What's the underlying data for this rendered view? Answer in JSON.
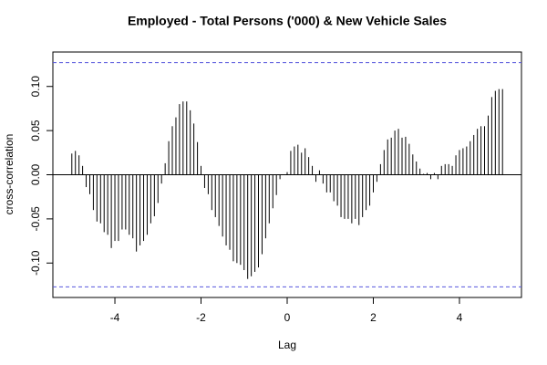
{
  "chart_data": {
    "type": "ccf",
    "title": "Employed - Total Persons ('000) & New Vehicle Sales",
    "x_label": "Lag",
    "y_label": "cross-correlation",
    "x": [
      -5,
      -4.917,
      -4.833,
      -4.75,
      -4.667,
      -4.583,
      -4.5,
      -4.417,
      -4.333,
      -4.25,
      -4.167,
      -4.083,
      -4,
      -3.917,
      -3.833,
      -3.75,
      -3.667,
      -3.583,
      -3.5,
      -3.417,
      -3.333,
      -3.25,
      -3.167,
      -3.083,
      -3,
      -2.917,
      -2.833,
      -2.75,
      -2.667,
      -2.583,
      -2.5,
      -2.417,
      -2.333,
      -2.25,
      -2.167,
      -2.083,
      -2,
      -1.917,
      -1.833,
      -1.75,
      -1.667,
      -1.583,
      -1.5,
      -1.417,
      -1.333,
      -1.25,
      -1.167,
      -1.083,
      -1,
      -0.917,
      -0.833,
      -0.75,
      -0.667,
      -0.583,
      -0.5,
      -0.417,
      -0.333,
      -0.25,
      -0.167,
      -0.083,
      0,
      0.083,
      0.167,
      0.25,
      0.333,
      0.417,
      0.5,
      0.583,
      0.667,
      0.75,
      0.833,
      0.917,
      1,
      1.083,
      1.167,
      1.25,
      1.333,
      1.417,
      1.5,
      1.583,
      1.667,
      1.75,
      1.833,
      1.917,
      2,
      2.083,
      2.167,
      2.25,
      2.333,
      2.417,
      2.5,
      2.583,
      2.667,
      2.75,
      2.833,
      2.917,
      3,
      3.083,
      3.167,
      3.25,
      3.333,
      3.417,
      3.5,
      3.583,
      3.667,
      3.75,
      3.833,
      3.917,
      4,
      4.083,
      4.167,
      4.25,
      4.333,
      4.417,
      4.5,
      4.583,
      4.667,
      4.75,
      4.833,
      4.917,
      5
    ],
    "values": [
      0.024,
      0.027,
      0.022,
      0.01,
      -0.014,
      -0.022,
      -0.04,
      -0.053,
      -0.055,
      -0.065,
      -0.068,
      -0.083,
      -0.075,
      -0.075,
      -0.062,
      -0.062,
      -0.068,
      -0.072,
      -0.087,
      -0.08,
      -0.075,
      -0.068,
      -0.055,
      -0.047,
      -0.032,
      -0.01,
      0.013,
      0.038,
      0.055,
      0.065,
      0.08,
      0.083,
      0.083,
      0.073,
      0.058,
      0.037,
      0.01,
      -0.015,
      -0.022,
      -0.04,
      -0.048,
      -0.058,
      -0.07,
      -0.08,
      -0.085,
      -0.098,
      -0.1,
      -0.102,
      -0.108,
      -0.118,
      -0.115,
      -0.11,
      -0.105,
      -0.09,
      -0.072,
      -0.055,
      -0.038,
      -0.023,
      -0.005,
      0.0,
      0.003,
      0.027,
      0.032,
      0.034,
      0.025,
      0.03,
      0.02,
      0.01,
      -0.008,
      0.005,
      -0.01,
      -0.02,
      -0.02,
      -0.03,
      -0.035,
      -0.048,
      -0.05,
      -0.05,
      -0.055,
      -0.05,
      -0.057,
      -0.048,
      -0.04,
      -0.035,
      -0.02,
      -0.008,
      0.012,
      0.028,
      0.04,
      0.042,
      0.05,
      0.052,
      0.042,
      0.043,
      0.035,
      0.023,
      0.015,
      0.007,
      0.001,
      0.002,
      -0.005,
      0.002,
      -0.005,
      0.01,
      0.012,
      0.012,
      0.01,
      0.022,
      0.028,
      0.03,
      0.032,
      0.038,
      0.045,
      0.052,
      0.055,
      0.055,
      0.067,
      0.088,
      0.095,
      0.097,
      0.097
    ],
    "color": "#000000",
    "conf_limits": [
      -0.127,
      0.127
    ],
    "conf_color": "#5555dd",
    "xlim": [
      -5.44,
      5.44
    ],
    "ylim": [
      -0.139,
      0.139
    ],
    "xticks": [
      -4,
      -2,
      0,
      2,
      4
    ],
    "yticks": [
      {
        "value": -0.1,
        "label": "-0.10"
      },
      {
        "value": -0.05,
        "label": "-0.05"
      },
      {
        "value": 0,
        "label": "0.00"
      },
      {
        "value": 0.05,
        "label": "0.05"
      },
      {
        "value": 0.1,
        "label": "0.10"
      }
    ]
  }
}
